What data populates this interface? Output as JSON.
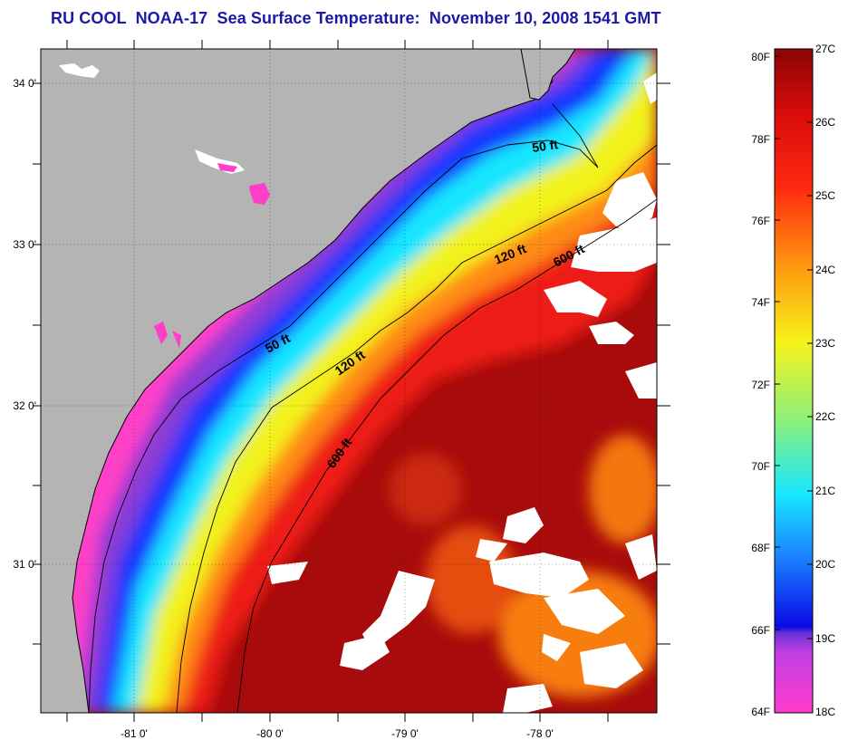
{
  "title": "RU COOL  NOAA-17  Sea Surface Temperature:  November 10, 2008 1541 GMT",
  "map": {
    "lat_labels": [
      "34 0'",
      "33 0'",
      "32 0'",
      "31 0'"
    ],
    "lon_labels": [
      "-81 0'",
      "-80 0'",
      "-79 0'",
      "-78 0'"
    ],
    "isobath_labels": [
      "50 ft",
      "50 ft",
      "120 ft",
      "120 ft",
      "600 ft",
      "600 ft"
    ],
    "colors": {
      "land": "#b4b4b4",
      "cloud": "#ffffff",
      "cool_magenta": "#ff3fc8",
      "purple": "#8a3cd6",
      "blue": "#1438ff",
      "cyan": "#19e6ff",
      "yellow": "#f2f21a",
      "orange": "#ff8a12",
      "red": "#ee1212",
      "dark_red": "#a80b0b"
    }
  },
  "colorbar": {
    "fahrenheit_labels": [
      "80F",
      "78F",
      "76F",
      "74F",
      "72F",
      "70F",
      "68F",
      "66F",
      "64F"
    ],
    "celsius_labels": [
      "27C",
      "26C",
      "25C",
      "24C",
      "23C",
      "22C",
      "21C",
      "20C",
      "19C",
      "18C"
    ]
  }
}
